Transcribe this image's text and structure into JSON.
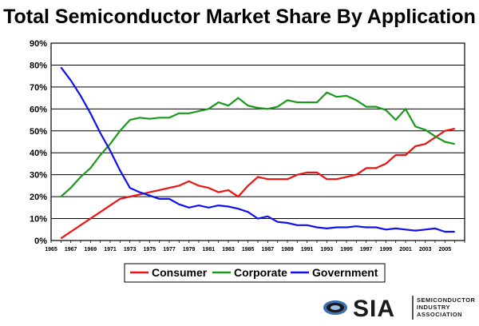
{
  "chart_data": {
    "type": "line",
    "title": "Total Semiconductor Market Share By Application",
    "ylim": [
      0,
      90
    ],
    "ytick_labels": [
      "0%",
      "10%",
      "20%",
      "30%",
      "40%",
      "50%",
      "60%",
      "70%",
      "80%",
      "90%"
    ],
    "xlim": [
      1965,
      2007
    ],
    "xtick_labels": [
      "1965",
      "1967",
      "1969",
      "1971",
      "1973",
      "1975",
      "1977",
      "1979",
      "1981",
      "1983",
      "1985",
      "1987",
      "1989",
      "1991",
      "1993",
      "1995",
      "1997",
      "1999",
      "2001",
      "2003",
      "2005"
    ],
    "grid": true,
    "legend_position": "bottom-center",
    "x": [
      1966,
      1967,
      1968,
      1969,
      1970,
      1971,
      1972,
      1973,
      1974,
      1975,
      1976,
      1977,
      1978,
      1979,
      1980,
      1981,
      1982,
      1983,
      1984,
      1985,
      1986,
      1987,
      1988,
      1989,
      1990,
      1991,
      1992,
      1993,
      1994,
      1995,
      1996,
      1997,
      1998,
      1999,
      2000,
      2001,
      2002,
      2003,
      2004,
      2005,
      2006
    ],
    "series": [
      {
        "name": "Consumer",
        "color": "#ee1111",
        "values": [
          1,
          4,
          7,
          10,
          13,
          16,
          19,
          20,
          21,
          22,
          23,
          24,
          25,
          27,
          25,
          24,
          22,
          23,
          20,
          25,
          29,
          28,
          28,
          28,
          30,
          31,
          31,
          28,
          28,
          29,
          30,
          33,
          33,
          35,
          39,
          39,
          43,
          44,
          47,
          50,
          51
        ]
      },
      {
        "name": "Corporate",
        "color": "#1a9a1a",
        "values": [
          20,
          24,
          29,
          33,
          39,
          44,
          50,
          55,
          56,
          55.5,
          56,
          56,
          58,
          58,
          59,
          60,
          63,
          61.5,
          65,
          61.5,
          60.5,
          60,
          61,
          64,
          63,
          63,
          63,
          67.5,
          65.5,
          66,
          64,
          61,
          61,
          59.5,
          55,
          60,
          52,
          50.5,
          47.5,
          45,
          44
        ]
      },
      {
        "name": "Government",
        "color": "#1111ee",
        "values": [
          79,
          73,
          66,
          58,
          49,
          41,
          32,
          24,
          22,
          20.5,
          19,
          19,
          16.5,
          15,
          16,
          15,
          16,
          15.5,
          14.5,
          13,
          10,
          11,
          8.5,
          8,
          7,
          7,
          6,
          5.5,
          6,
          6,
          6.5,
          6,
          6,
          5,
          5.5,
          5,
          4.5,
          5,
          5.5,
          4,
          4
        ]
      }
    ]
  },
  "logo": {
    "text": "SIA",
    "sub_lines": [
      "SEMICONDUCTOR",
      "INDUSTRY",
      "ASSOCIATION"
    ],
    "color": "#1a1a1a",
    "accent": "#3a6fb0"
  }
}
